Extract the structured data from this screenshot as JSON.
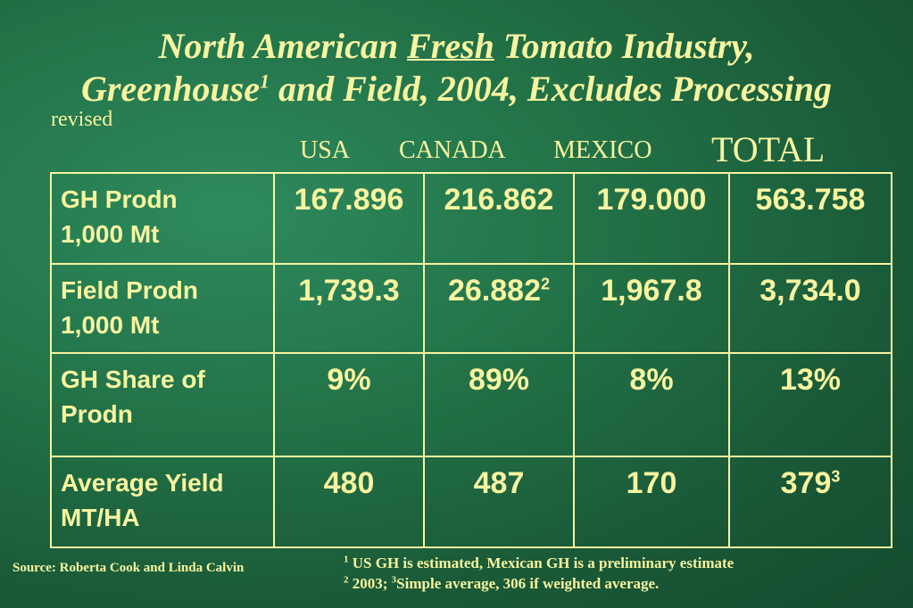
{
  "title": {
    "line1_a": "North American ",
    "line1_b": "Fresh",
    "line1_c": " Tomato Industry,",
    "line2_a": "Greenhouse",
    "line2_sup": "1",
    "line2_b": " and Field, 2004, Excludes Processing"
  },
  "revised": "revised",
  "columns": {
    "usa": "USA",
    "canada": "CANADA",
    "mexico": "MEXICO",
    "total": "TOTAL"
  },
  "rows": [
    {
      "label_1": "GH Prodn",
      "label_2": "1,000 Mt",
      "usa": "167.896",
      "canada": "216.862",
      "canada_sup": "",
      "mexico": "179.000",
      "total": "563.758",
      "total_sup": ""
    },
    {
      "label_1": "Field Prodn",
      "label_2": "1,000 Mt",
      "usa": "1,739.3",
      "canada": "26.882",
      "canada_sup": "2",
      "mexico": "1,967.8",
      "total": "3,734.0",
      "total_sup": ""
    },
    {
      "label_1": "GH Share of",
      "label_2": "Prodn",
      "usa": "9%",
      "canada": "89%",
      "canada_sup": "",
      "mexico": "8%",
      "total": "13%",
      "total_sup": ""
    },
    {
      "label_1": "Average Yield",
      "label_2": "MT/HA",
      "usa": "480",
      "canada": "487",
      "canada_sup": "",
      "mexico": "170",
      "total": "379",
      "total_sup": "3"
    }
  ],
  "source": "Source: Roberta Cook and Linda Calvin",
  "notes": {
    "n1_sup": "1",
    "n1_text": " US GH is estimated, Mexican GH is a preliminary estimate",
    "n2_sup": "2",
    "n2_text": " 2003; ",
    "n3_sup": "3",
    "n3_text": "Simple average, 306 if weighted average."
  }
}
